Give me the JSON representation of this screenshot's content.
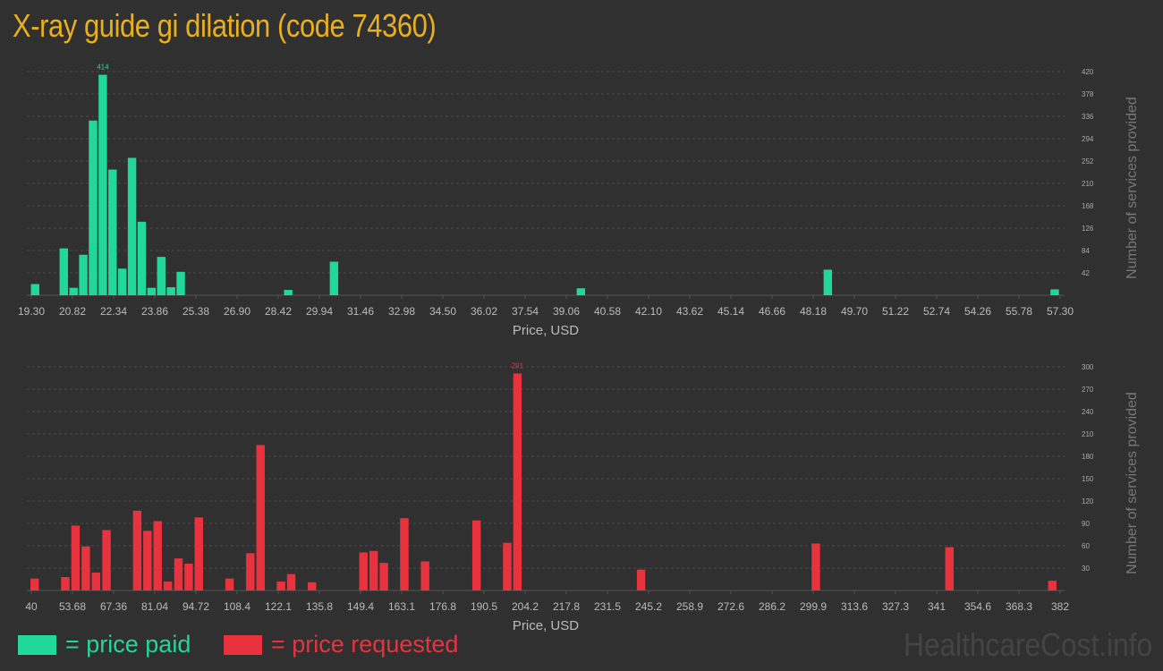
{
  "title": "X-ray guide gi dilation (code 74360)",
  "colors": {
    "paid": "#22d79a",
    "requested": "#e8333e",
    "title": "#e8b020"
  },
  "legend": {
    "paid": "= price paid",
    "requested": "= price requested"
  },
  "watermark": "HealthcareCost.info",
  "chart_data": [
    {
      "type": "bar",
      "name": "price paid",
      "xlabel": "Price, USD",
      "ylabel": "Number of services provided",
      "xlim": [
        19.3,
        57.3
      ],
      "xticks": [
        "19.30",
        "20.82",
        "22.34",
        "23.86",
        "25.38",
        "26.90",
        "28.42",
        "29.94",
        "31.46",
        "32.98",
        "34.50",
        "36.02",
        "37.54",
        "39.06",
        "40.58",
        "42.10",
        "43.62",
        "45.14",
        "46.66",
        "48.18",
        "49.70",
        "51.22",
        "52.74",
        "54.26",
        "55.78",
        "57.30"
      ],
      "yticks": [
        42,
        84,
        126,
        168,
        210,
        252,
        294,
        336,
        378,
        420
      ],
      "ylim": [
        0,
        420
      ],
      "peak_label": "414",
      "bins": 100,
      "bars": [
        {
          "x": 19.44,
          "y": 21
        },
        {
          "x": 20.5,
          "y": 88
        },
        {
          "x": 20.86,
          "y": 14
        },
        {
          "x": 21.22,
          "y": 76
        },
        {
          "x": 21.58,
          "y": 328
        },
        {
          "x": 21.94,
          "y": 414
        },
        {
          "x": 22.3,
          "y": 236
        },
        {
          "x": 22.66,
          "y": 50
        },
        {
          "x": 23.02,
          "y": 258
        },
        {
          "x": 23.38,
          "y": 138
        },
        {
          "x": 23.74,
          "y": 14
        },
        {
          "x": 24.1,
          "y": 72
        },
        {
          "x": 24.46,
          "y": 15
        },
        {
          "x": 24.82,
          "y": 44
        },
        {
          "x": 28.79,
          "y": 10
        },
        {
          "x": 30.48,
          "y": 63
        },
        {
          "x": 39.6,
          "y": 13
        },
        {
          "x": 48.72,
          "y": 48
        },
        {
          "x": 57.1,
          "y": 11
        }
      ]
    },
    {
      "type": "bar",
      "name": "price requested",
      "xlabel": "Price, USD",
      "ylabel": "Number of services provided",
      "xlim": [
        40,
        382
      ],
      "xticks": [
        "40",
        "53.68",
        "67.36",
        "81.04",
        "94.72",
        "108.4",
        "122.1",
        "135.8",
        "149.4",
        "163.1",
        "176.8",
        "190.5",
        "204.2",
        "217.8",
        "231.5",
        "245.2",
        "258.9",
        "272.6",
        "286.2",
        "299.9",
        "313.6",
        "327.3",
        "341",
        "354.6",
        "368.3",
        "382"
      ],
      "yticks": [
        30,
        60,
        90,
        120,
        150,
        180,
        210,
        240,
        270,
        300
      ],
      "ylim": [
        0,
        300
      ],
      "peak_label": "291",
      "bins": 100,
      "bars": [
        {
          "x": 41.1,
          "y": 16
        },
        {
          "x": 51.3,
          "y": 18
        },
        {
          "x": 54.7,
          "y": 87
        },
        {
          "x": 58.1,
          "y": 59
        },
        {
          "x": 61.5,
          "y": 24
        },
        {
          "x": 65.0,
          "y": 81
        },
        {
          "x": 75.2,
          "y": 107
        },
        {
          "x": 78.6,
          "y": 80
        },
        {
          "x": 82.0,
          "y": 93
        },
        {
          "x": 85.4,
          "y": 12
        },
        {
          "x": 88.9,
          "y": 43
        },
        {
          "x": 92.3,
          "y": 36
        },
        {
          "x": 95.7,
          "y": 98
        },
        {
          "x": 105.9,
          "y": 16
        },
        {
          "x": 112.8,
          "y": 50
        },
        {
          "x": 116.2,
          "y": 195
        },
        {
          "x": 123.0,
          "y": 12
        },
        {
          "x": 126.4,
          "y": 22
        },
        {
          "x": 133.3,
          "y": 11
        },
        {
          "x": 150.4,
          "y": 51
        },
        {
          "x": 153.8,
          "y": 53
        },
        {
          "x": 157.2,
          "y": 37
        },
        {
          "x": 164.0,
          "y": 97
        },
        {
          "x": 170.9,
          "y": 39
        },
        {
          "x": 188.0,
          "y": 94
        },
        {
          "x": 198.2,
          "y": 64
        },
        {
          "x": 201.6,
          "y": 291
        },
        {
          "x": 242.7,
          "y": 28
        },
        {
          "x": 300.8,
          "y": 63
        },
        {
          "x": 345.2,
          "y": 58
        },
        {
          "x": 379.4,
          "y": 13
        }
      ]
    }
  ]
}
